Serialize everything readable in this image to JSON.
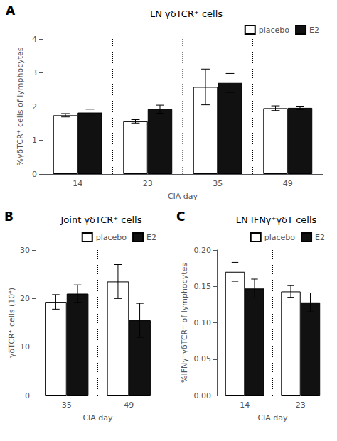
{
  "chart_data": [
    {
      "type": "bar",
      "title": "LN γδTCR⁺ cells",
      "xlabel": "CIA day",
      "ylabel": "%γδTCR⁺ cells of lymphocytes",
      "annotations": [
        "A"
      ],
      "categories": [
        "14",
        "23",
        "35",
        "49"
      ],
      "series": [
        {
          "name": "placebo",
          "color": "#ffffff",
          "values": [
            1.74,
            1.56,
            2.58,
            1.95
          ],
          "errors": [
            0.05,
            0.05,
            0.53,
            0.07
          ]
        },
        {
          "name": "E2",
          "color": "#111111",
          "values": [
            1.82,
            1.92,
            2.7,
            1.96
          ],
          "errors": [
            0.1,
            0.12,
            0.28,
            0.05
          ]
        }
      ],
      "ylim": [
        0,
        4
      ],
      "yticks": [
        0,
        1,
        2,
        3,
        4
      ],
      "grid": false,
      "legend": "upper right"
    },
    {
      "type": "bar",
      "title": "Joint γδTCR⁺ cells",
      "xlabel": "CIA day",
      "ylabel": "γδTCR⁺ cells (10⁴)",
      "annotations": [
        "B"
      ],
      "categories": [
        "35",
        "49"
      ],
      "series": [
        {
          "name": "placebo",
          "color": "#ffffff",
          "values": [
            19.3,
            23.5
          ],
          "errors": [
            1.5,
            3.5
          ]
        },
        {
          "name": "E2",
          "color": "#111111",
          "values": [
            21.0,
            15.5
          ],
          "errors": [
            1.8,
            3.5
          ]
        }
      ],
      "ylim": [
        0,
        30
      ],
      "yticks": [
        0,
        10,
        20,
        30
      ],
      "grid": false,
      "legend": "upper right"
    },
    {
      "type": "bar",
      "title": "LN IFNγ⁺γδT cells",
      "xlabel": "CIA day",
      "ylabel": "%IFNγ⁺γδTCR⁻ of lymphocytes",
      "annotations": [
        "C"
      ],
      "categories": [
        "14",
        "23"
      ],
      "series": [
        {
          "name": "placebo",
          "color": "#ffffff",
          "values": [
            0.17,
            0.143
          ],
          "errors": [
            0.013,
            0.008
          ]
        },
        {
          "name": "E2",
          "color": "#111111",
          "values": [
            0.147,
            0.128
          ],
          "errors": [
            0.013,
            0.013
          ]
        }
      ],
      "ylim": [
        0.0,
        0.2
      ],
      "yticks": [
        {
          "value": 0.0,
          "label": "0.00"
        },
        {
          "value": 0.05,
          "label": "0.05"
        },
        {
          "value": 0.1,
          "label": "0.10"
        },
        {
          "value": 0.15,
          "label": "0.15"
        },
        {
          "value": 0.2,
          "label": "0.20"
        }
      ],
      "grid": false,
      "legend": "upper right"
    }
  ]
}
